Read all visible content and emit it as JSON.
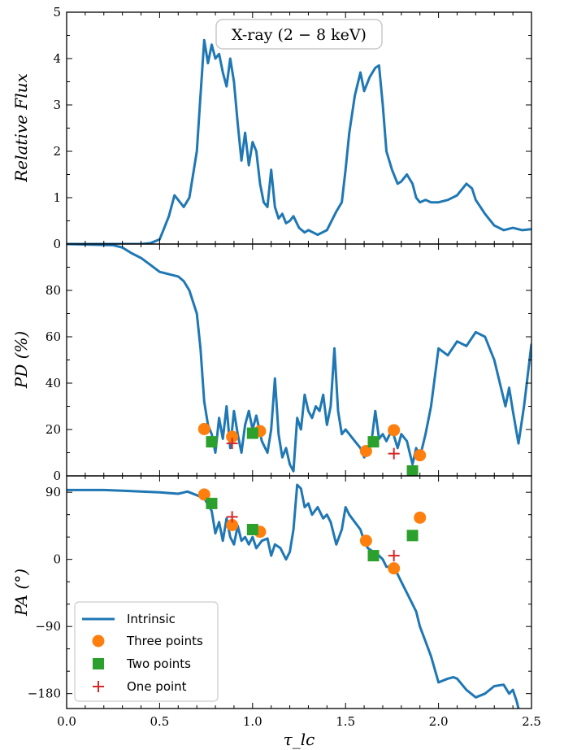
{
  "chart_data": {
    "type": "line",
    "xlabel": "τ_lc",
    "xlim": [
      0.0,
      2.5
    ],
    "xticks": [
      "0.0",
      "0.5",
      "1.0",
      "1.5",
      "2.0",
      "2.5"
    ],
    "colors": {
      "intrinsic": "#1f77b4",
      "three": "#ff7f0e",
      "two": "#2ca02c",
      "one": "#d62728"
    },
    "legend": {
      "placement": "lower-left (bottom panel)",
      "entries": [
        "Intrinsic",
        "Three points",
        "Two points",
        "One point"
      ]
    },
    "panels": [
      {
        "id": "flux",
        "ylabel": "Relative Flux",
        "ylim": [
          0,
          5
        ],
        "yticks": [
          0,
          1,
          2,
          3,
          4,
          5
        ],
        "annotation": "X-ray (2 − 8 keV)",
        "series": [
          {
            "name": "Intrinsic",
            "x": [
              0.0,
              0.3,
              0.4,
              0.45,
              0.5,
              0.52,
              0.55,
              0.58,
              0.6,
              0.63,
              0.66,
              0.7,
              0.72,
              0.74,
              0.76,
              0.78,
              0.8,
              0.82,
              0.84,
              0.86,
              0.88,
              0.9,
              0.92,
              0.94,
              0.96,
              0.98,
              1.0,
              1.02,
              1.04,
              1.06,
              1.08,
              1.1,
              1.12,
              1.14,
              1.16,
              1.18,
              1.2,
              1.22,
              1.25,
              1.28,
              1.3,
              1.35,
              1.4,
              1.45,
              1.48,
              1.5,
              1.52,
              1.55,
              1.58,
              1.6,
              1.63,
              1.66,
              1.68,
              1.7,
              1.72,
              1.75,
              1.78,
              1.8,
              1.83,
              1.86,
              1.88,
              1.9,
              1.93,
              1.96,
              2.0,
              2.05,
              2.1,
              2.15,
              2.18,
              2.2,
              2.25,
              2.3,
              2.35,
              2.4,
              2.45,
              2.5
            ],
            "y": [
              0.0,
              0.0,
              0.0,
              0.02,
              0.1,
              0.3,
              0.6,
              1.05,
              0.95,
              0.8,
              1.0,
              2.0,
              3.2,
              4.4,
              3.9,
              4.3,
              4.0,
              4.1,
              3.7,
              3.4,
              4.0,
              3.5,
              2.6,
              1.8,
              2.4,
              1.7,
              2.2,
              2.0,
              1.3,
              0.9,
              0.8,
              1.6,
              0.8,
              0.55,
              0.65,
              0.45,
              0.5,
              0.6,
              0.35,
              0.25,
              0.3,
              0.2,
              0.3,
              0.7,
              0.9,
              1.6,
              2.4,
              3.2,
              3.7,
              3.3,
              3.6,
              3.8,
              3.85,
              3.0,
              2.0,
              1.6,
              1.3,
              1.35,
              1.5,
              1.3,
              1.0,
              0.9,
              0.95,
              0.9,
              0.9,
              0.95,
              1.05,
              1.3,
              1.2,
              0.95,
              0.65,
              0.4,
              0.3,
              0.35,
              0.3,
              0.32
            ]
          }
        ]
      },
      {
        "id": "pd",
        "ylabel": "PD (%)",
        "ylim": [
          0,
          100
        ],
        "yticks": [
          0,
          20,
          40,
          60,
          80
        ],
        "series": [
          {
            "name": "Intrinsic",
            "x": [
              0.0,
              0.25,
              0.3,
              0.35,
              0.4,
              0.45,
              0.5,
              0.55,
              0.6,
              0.63,
              0.66,
              0.7,
              0.72,
              0.74,
              0.76,
              0.78,
              0.8,
              0.82,
              0.84,
              0.86,
              0.88,
              0.9,
              0.92,
              0.94,
              0.96,
              0.98,
              1.0,
              1.02,
              1.05,
              1.08,
              1.1,
              1.12,
              1.14,
              1.16,
              1.18,
              1.2,
              1.22,
              1.24,
              1.26,
              1.28,
              1.3,
              1.32,
              1.34,
              1.36,
              1.38,
              1.4,
              1.42,
              1.44,
              1.46,
              1.48,
              1.5,
              1.52,
              1.55,
              1.58,
              1.6,
              1.62,
              1.64,
              1.66,
              1.68,
              1.7,
              1.72,
              1.75,
              1.78,
              1.8,
              1.83,
              1.86,
              1.88,
              1.9,
              1.93,
              1.96,
              2.0,
              2.05,
              2.1,
              2.15,
              2.2,
              2.25,
              2.3,
              2.33,
              2.36,
              2.38,
              2.4,
              2.43,
              2.46,
              2.5
            ],
            "y": [
              100,
              99.5,
              98.5,
              96,
              94,
              91,
              88,
              87,
              86,
              84,
              80,
              70,
              55,
              32,
              22,
              18,
              10,
              25,
              16,
              30,
              12,
              28,
              18,
              10,
              22,
              28,
              20,
              26,
              15,
              10,
              20,
              42,
              18,
              8,
              12,
              5,
              2,
              25,
              20,
              35,
              28,
              25,
              30,
              28,
              35,
              22,
              30,
              55,
              28,
              18,
              20,
              18,
              15,
              12,
              8,
              10,
              15,
              28,
              16,
              18,
              15,
              20,
              12,
              18,
              15,
              5,
              12,
              8,
              18,
              30,
              55,
              52,
              58,
              56,
              62,
              60,
              50,
              40,
              30,
              38,
              28,
              14,
              30,
              57
            ]
          },
          {
            "name": "Three points",
            "x": [
              0.74,
              0.89,
              1.04,
              1.61,
              1.76,
              1.9
            ],
            "y": [
              20.2,
              16.9,
              19.3,
              10.7,
              19.7,
              8.9
            ]
          },
          {
            "name": "Two points",
            "x": [
              0.78,
              1.0,
              1.65,
              1.86
            ],
            "y": [
              14.7,
              18.4,
              14.7,
              2.1
            ]
          },
          {
            "name": "One point",
            "x": [
              0.89,
              1.76
            ],
            "y": [
              14.0,
              9.6
            ]
          }
        ]
      },
      {
        "id": "pa",
        "ylabel": "PA (°)",
        "ylim": [
          -200,
          112
        ],
        "yticks": [
          -180,
          -90,
          0,
          90
        ],
        "series": [
          {
            "name": "Intrinsic",
            "x": [
              0.0,
              0.2,
              0.3,
              0.4,
              0.5,
              0.6,
              0.65,
              0.7,
              0.74,
              0.78,
              0.8,
              0.82,
              0.84,
              0.86,
              0.88,
              0.9,
              0.92,
              0.94,
              0.96,
              0.98,
              1.0,
              1.02,
              1.05,
              1.08,
              1.1,
              1.12,
              1.15,
              1.18,
              1.2,
              1.22,
              1.24,
              1.26,
              1.28,
              1.3,
              1.32,
              1.35,
              1.38,
              1.4,
              1.42,
              1.45,
              1.48,
              1.5,
              1.52,
              1.55,
              1.58,
              1.6,
              1.62,
              1.65,
              1.68,
              1.7,
              1.72,
              1.75,
              1.78,
              1.8,
              1.82,
              1.85,
              1.88,
              1.9,
              1.93,
              1.96,
              2.0,
              2.05,
              2.08,
              2.1,
              2.15,
              2.2,
              2.25,
              2.3,
              2.35,
              2.38,
              2.4,
              2.42,
              2.43
            ],
            "y": [
              93,
              93,
              92,
              91,
              90,
              88,
              91,
              86,
              82,
              65,
              35,
              50,
              25,
              55,
              30,
              20,
              45,
              25,
              30,
              20,
              30,
              15,
              25,
              28,
              5,
              20,
              15,
              0,
              10,
              40,
              100,
              95,
              70,
              75,
              60,
              70,
              55,
              60,
              50,
              20,
              40,
              70,
              60,
              50,
              40,
              25,
              15,
              10,
              5,
              0,
              -10,
              -10,
              -20,
              -30,
              -40,
              -55,
              -70,
              -90,
              -110,
              -130,
              -165,
              -160,
              -158,
              -160,
              -175,
              -185,
              -180,
              -170,
              -168,
              -180,
              -175,
              -190,
              -200
            ]
          },
          {
            "name": "Three points",
            "x": [
              0.74,
              0.89,
              1.04,
              1.61,
              1.76,
              1.9
            ],
            "y": [
              87,
              46,
              37,
              25,
              -12,
              56
            ]
          },
          {
            "name": "Two points",
            "x": [
              0.78,
              1.0,
              1.65,
              1.86
            ],
            "y": [
              75,
              40,
              5,
              32
            ]
          },
          {
            "name": "One point",
            "x": [
              0.89,
              1.76
            ],
            "y": [
              57,
              5
            ]
          }
        ]
      }
    ]
  }
}
